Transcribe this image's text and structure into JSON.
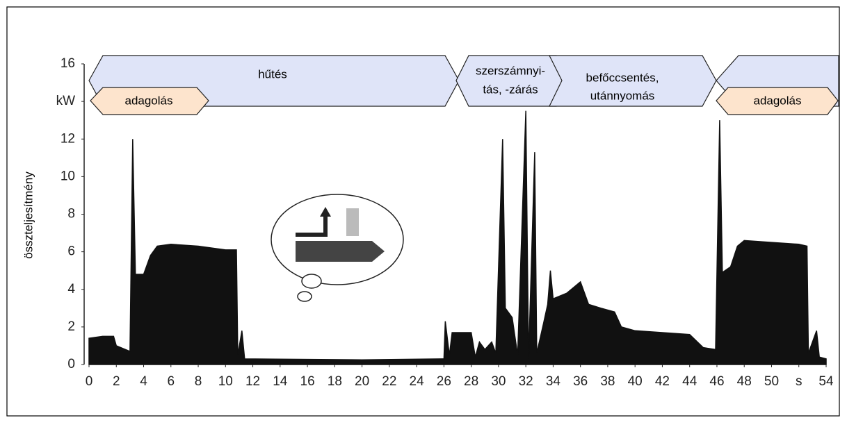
{
  "chart_data": {
    "type": "area",
    "ylabel": "összteljesítmény",
    "annotations": [
      "hűtés",
      "adagolás",
      "szerszámnyi-",
      "tás, -zárás",
      "befőccsentés,",
      "utánnyomás",
      "adagolás"
    ],
    "color": "#111111",
    "x": [
      0,
      1,
      1.8,
      2,
      3,
      3.2,
      3.4,
      4,
      4.5,
      5,
      6,
      8,
      10,
      10.8,
      10.9,
      11.2,
      11.4,
      20,
      26,
      26.1,
      26.4,
      26.6,
      28,
      28.3,
      28.6,
      29,
      29.5,
      29.8,
      30.3,
      30.5,
      31,
      31.4,
      32,
      32.2,
      32.65,
      32.8,
      33.3,
      33.6,
      33.8,
      34,
      35,
      36,
      36.6,
      37.5,
      38.5,
      39,
      40,
      42,
      44,
      45,
      45.9,
      46.2,
      46.4,
      47,
      47.5,
      48,
      50,
      52,
      52.6,
      52.7,
      53.3,
      53.5,
      54
    ],
    "values": [
      1.4,
      1.5,
      1.5,
      1.0,
      0.7,
      12,
      4.8,
      4.8,
      5.8,
      6.3,
      6.4,
      6.3,
      6.1,
      6.1,
      0.5,
      1.8,
      0.3,
      0.25,
      0.3,
      2.3,
      0.5,
      1.7,
      1.7,
      0.4,
      1.2,
      0.8,
      1.2,
      0.6,
      12,
      3,
      2.5,
      0.5,
      13.5,
      0.3,
      11.3,
      0.6,
      2.2,
      3.2,
      5.0,
      3.5,
      3.8,
      4.4,
      3.2,
      3.0,
      2.8,
      2.0,
      1.8,
      1.7,
      1.6,
      0.9,
      0.8,
      13,
      4.9,
      5.2,
      6.3,
      6.6,
      6.5,
      6.4,
      6.3,
      0.6,
      1.8,
      0.4,
      0.3
    ],
    "xlim": [
      0,
      54
    ],
    "ylim": [
      0,
      16
    ],
    "xticks": [
      0,
      2,
      4,
      6,
      8,
      10,
      12,
      14,
      16,
      18,
      20,
      22,
      24,
      26,
      28,
      30,
      32,
      34,
      36,
      38,
      40,
      42,
      44,
      46,
      48,
      50,
      {
        "value": 52,
        "label": "s"
      },
      54
    ],
    "yticks": [
      0,
      2,
      4,
      6,
      8,
      10,
      12,
      {
        "value": 14,
        "label": "kW"
      },
      16
    ]
  }
}
